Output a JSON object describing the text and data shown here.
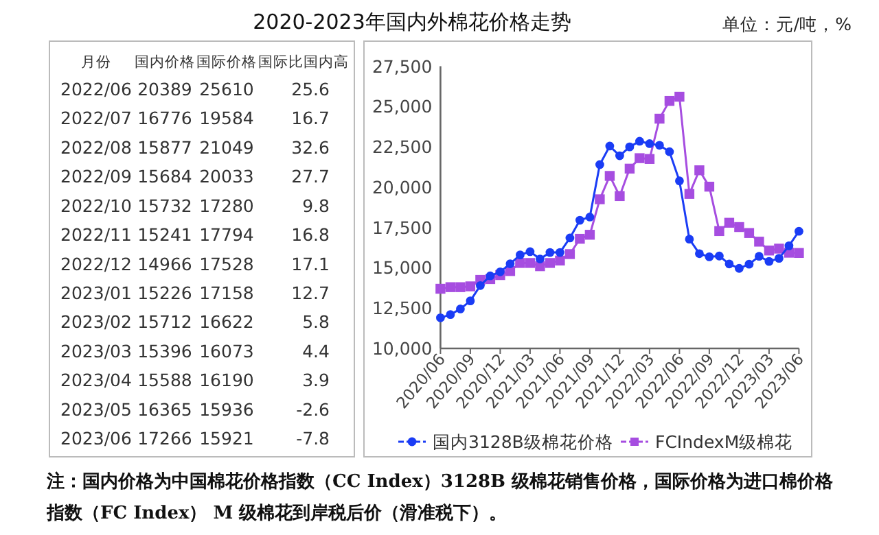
{
  "chart_data": [
    {
      "type": "other",
      "title": "2020-2023年国内外棉花价格走势",
      "xlabel": "月份",
      "data_labels": true,
      "categories": [
        "2022/06",
        "2022/07",
        "2022/08",
        "2022/09",
        "2022/10",
        "2022/11",
        "2022/12",
        "2023/01",
        "2023/02",
        "2023/03",
        "2023/04",
        "2023/05",
        "2023/06"
      ],
      "series": [
        {
          "name": "国内价格",
          "values": [
            20389,
            16776,
            15877,
            15684,
            15732,
            15241,
            14966,
            15226,
            15712,
            15396,
            15588,
            16365,
            17266
          ]
        },
        {
          "name": "国际价格",
          "values": [
            25610,
            19584,
            21049,
            20033,
            17280,
            17794,
            17528,
            17158,
            16622,
            16073,
            16190,
            15936,
            15921
          ]
        },
        {
          "name": "国际比国内高",
          "values": [
            25.6,
            16.7,
            32.6,
            27.7,
            9.8,
            16.8,
            17.1,
            12.7,
            5.8,
            4.4,
            3.9,
            -2.6,
            -7.8
          ]
        }
      ],
      "annotations": [
        "单位：元/吨，%",
        "注：国内价格为中国棉花价格指数（CC Index）3128B 级棉花销售价格，国际价格为进口棉价格指数（FC Index） M 级棉花到岸税后价（滑准税下）。"
      ]
    },
    {
      "type": "line",
      "line_style": "solid",
      "grid": false,
      "legend": "bottom",
      "categories": [
        "2020/06",
        null,
        null,
        "2020/09",
        null,
        null,
        "2020/12",
        null,
        null,
        "2021/03",
        null,
        null,
        "2021/06",
        null,
        null,
        "2021/09",
        null,
        null,
        "2021/12",
        null,
        null,
        "2022/03",
        null,
        null,
        "2022/06",
        null,
        null,
        "2022/09",
        null,
        null,
        "2022/12",
        null,
        null,
        "2023/03",
        null,
        null,
        "2023/06"
      ],
      "ylim": [
        10000,
        27500
      ],
      "yticks": [
        {
          "value": 10000,
          "label": "10,000"
        },
        {
          "value": 12500,
          "label": "12,500"
        },
        {
          "value": 15000,
          "label": "15,000"
        },
        {
          "value": 17500,
          "label": "17,500"
        },
        {
          "value": 20000,
          "label": "20,000"
        },
        {
          "value": 22500,
          "label": "22,500"
        },
        {
          "value": 25000,
          "label": "25,000"
        },
        {
          "value": 27500,
          "label": "27,500"
        }
      ],
      "series": [
        {
          "name": "国内3128B级棉花价格",
          "color": "#1a3cf5",
          "marker": "circle",
          "values": [
            11900,
            12100,
            12450,
            12950,
            13900,
            14500,
            14750,
            15250,
            15800,
            16000,
            15550,
            15950,
            15950,
            16850,
            17950,
            18150,
            21400,
            22550,
            21950,
            22500,
            22850,
            22700,
            22600,
            22200,
            20389,
            16776,
            15877,
            15684,
            15732,
            15241,
            14966,
            15226,
            15712,
            15396,
            15588,
            16365,
            17266
          ]
        },
        {
          "name": "FCIndexM级棉花",
          "color": "#a64de0",
          "marker": "square",
          "values": [
            13700,
            13800,
            13800,
            13850,
            14250,
            14300,
            14550,
            14800,
            15300,
            15300,
            15100,
            15300,
            15450,
            15850,
            16800,
            17050,
            19250,
            20700,
            19450,
            21150,
            21800,
            21750,
            24250,
            25350,
            25610,
            19584,
            21049,
            20033,
            17280,
            17794,
            17528,
            17158,
            16622,
            16073,
            16190,
            15936,
            15921
          ]
        }
      ]
    }
  ]
}
